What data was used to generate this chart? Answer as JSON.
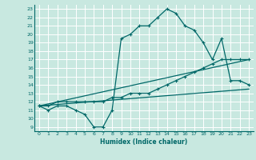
{
  "title": "",
  "xlabel": "Humidex (Indice chaleur)",
  "xlim": [
    -0.5,
    23.5
  ],
  "ylim": [
    8.5,
    23.5
  ],
  "xticks": [
    0,
    1,
    2,
    3,
    4,
    5,
    6,
    7,
    8,
    9,
    10,
    11,
    12,
    13,
    14,
    15,
    16,
    17,
    18,
    19,
    20,
    21,
    22,
    23
  ],
  "yticks": [
    9,
    10,
    11,
    12,
    13,
    14,
    15,
    16,
    17,
    18,
    19,
    20,
    21,
    22,
    23
  ],
  "bg_color": "#c8e8e0",
  "grid_color": "#ffffff",
  "line_color": "#006868",
  "line1_x": [
    0,
    1,
    2,
    3,
    4,
    5,
    6,
    7,
    8,
    9,
    10,
    11,
    12,
    13,
    14,
    15,
    16,
    17,
    18,
    19,
    20,
    21,
    22,
    23
  ],
  "line1_y": [
    11.5,
    11.0,
    11.5,
    11.5,
    11.0,
    10.5,
    9.0,
    9.0,
    11.0,
    19.5,
    20.0,
    21.0,
    21.0,
    22.0,
    23.0,
    22.5,
    21.0,
    20.5,
    19.0,
    17.0,
    19.5,
    14.5,
    14.5,
    14.0
  ],
  "line2_x": [
    0,
    1,
    2,
    3,
    4,
    5,
    6,
    7,
    8,
    9,
    10,
    11,
    12,
    13,
    14,
    15,
    16,
    17,
    18,
    19,
    20,
    21,
    22,
    23
  ],
  "line2_y": [
    11.5,
    11.5,
    12.0,
    12.0,
    12.0,
    12.0,
    12.0,
    12.0,
    12.5,
    12.5,
    13.0,
    13.0,
    13.0,
    13.5,
    14.0,
    14.5,
    15.0,
    15.5,
    16.0,
    16.5,
    17.0,
    17.0,
    17.0,
    17.0
  ],
  "line3_x": [
    0,
    23
  ],
  "line3_y": [
    11.5,
    13.5
  ],
  "line4_x": [
    0,
    23
  ],
  "line4_y": [
    11.5,
    17.0
  ]
}
